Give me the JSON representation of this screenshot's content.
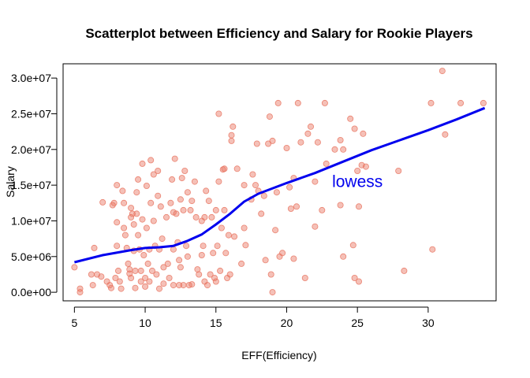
{
  "chart_data": {
    "type": "scatter",
    "title": "Scatterplot between Efficiency and Salary for Rookie Players",
    "xlabel": "EFF(Efficiency)",
    "ylabel": "Salary",
    "xlim": [
      4.2,
      34.8
    ],
    "ylim": [
      -1200000,
      32000000
    ],
    "x_ticks": [
      5,
      10,
      15,
      20,
      25,
      30
    ],
    "y_ticks": [
      0,
      5000000,
      10000000,
      15000000,
      20000000,
      25000000,
      30000000
    ],
    "y_tick_labels": [
      "0.0e+00",
      "5.0e+06",
      "1.0e+07",
      "1.5e+07",
      "2.0e+07",
      "2.5e+07",
      "3.0e+07"
    ],
    "grid": false,
    "point_color": "#e8735f",
    "line_color": "#0000ee",
    "annotation": {
      "text": "lowess",
      "x": 25,
      "y": 15500000,
      "color": "#0000ee"
    },
    "lowess": {
      "name": "lowess",
      "x": [
        5,
        7,
        9,
        10,
        11,
        12,
        13,
        14,
        15,
        16,
        17,
        18,
        20,
        22,
        24,
        26,
        28,
        30,
        32,
        34
      ],
      "y": [
        4200000,
        5200000,
        5900000,
        6200000,
        6300000,
        6500000,
        7200000,
        8100000,
        9500000,
        11000000,
        12700000,
        13800000,
        15300000,
        16700000,
        18300000,
        19900000,
        21300000,
        22700000,
        24200000,
        25800000
      ]
    },
    "points": [
      [
        5,
        3500000
      ],
      [
        5.4,
        0
      ],
      [
        5.4,
        500000
      ],
      [
        6.2,
        2500000
      ],
      [
        6.3,
        1000000
      ],
      [
        6.4,
        6200000
      ],
      [
        6.6,
        2500000
      ],
      [
        6.9,
        2200000
      ],
      [
        7,
        12600000
      ],
      [
        7.3,
        1500000
      ],
      [
        7.5,
        1000000
      ],
      [
        7.6,
        600000
      ],
      [
        7.7,
        12200000
      ],
      [
        7.8,
        12500000
      ],
      [
        7.9,
        2000000
      ],
      [
        8,
        15000000
      ],
      [
        8,
        9800000
      ],
      [
        8,
        6500000
      ],
      [
        8.1,
        3000000
      ],
      [
        8.2,
        1500000
      ],
      [
        8.3,
        500000
      ],
      [
        8.4,
        14200000
      ],
      [
        8.5,
        12500000
      ],
      [
        8.5,
        9000000
      ],
      [
        8.6,
        8000000
      ],
      [
        8.7,
        6200000
      ],
      [
        8.8,
        4000000
      ],
      [
        8.9,
        3200000
      ],
      [
        8.9,
        2600000
      ],
      [
        9,
        11800000
      ],
      [
        9,
        10500000
      ],
      [
        9,
        2000000
      ],
      [
        9.1,
        11000000
      ],
      [
        9.2,
        9500000
      ],
      [
        9.2,
        5800000
      ],
      [
        9.3,
        3000000
      ],
      [
        9.3,
        600000
      ],
      [
        9.4,
        14000000
      ],
      [
        9.4,
        11000000
      ],
      [
        9.5,
        15800000
      ],
      [
        9.5,
        8000000
      ],
      [
        9.6,
        6000000
      ],
      [
        9.7,
        3000000
      ],
      [
        9.7,
        1500000
      ],
      [
        9.8,
        18000000
      ],
      [
        9.8,
        10200000
      ],
      [
        9.9,
        5200000
      ],
      [
        10,
        2000000
      ],
      [
        10,
        800000
      ],
      [
        10.1,
        14900000
      ],
      [
        10.1,
        9000000
      ],
      [
        10.2,
        4000000
      ],
      [
        10.3,
        6000000
      ],
      [
        10.3,
        1500000
      ],
      [
        10.4,
        18500000
      ],
      [
        10.4,
        12500000
      ],
      [
        10.5,
        3000000
      ],
      [
        10.6,
        16500000
      ],
      [
        10.6,
        10000000
      ],
      [
        10.7,
        6500000
      ],
      [
        10.8,
        2500000
      ],
      [
        10.9,
        17000000
      ],
      [
        10.9,
        13500000
      ],
      [
        11,
        6000000
      ],
      [
        11,
        500000
      ],
      [
        11.1,
        12000000
      ],
      [
        11.2,
        7500000
      ],
      [
        11.3,
        3500000
      ],
      [
        11.3,
        1200000
      ],
      [
        11.5,
        10500000
      ],
      [
        11.6,
        4000000
      ],
      [
        11.7,
        2000000
      ],
      [
        11.8,
        12500000
      ],
      [
        11.9,
        15800000
      ],
      [
        12,
        11200000
      ],
      [
        12,
        6000000
      ],
      [
        12,
        1000000
      ],
      [
        12.1,
        18700000
      ],
      [
        12.2,
        11000000
      ],
      [
        12.3,
        7000000
      ],
      [
        12.4,
        4500000
      ],
      [
        12.4,
        1000000
      ],
      [
        12.5,
        13000000
      ],
      [
        12.5,
        3500000
      ],
      [
        12.6,
        16000000
      ],
      [
        12.7,
        11500000
      ],
      [
        12.7,
        1000000
      ],
      [
        12.8,
        17000000
      ],
      [
        12.9,
        6500000
      ],
      [
        13,
        14000000
      ],
      [
        13,
        5000000
      ],
      [
        13.1,
        1000000
      ],
      [
        13.2,
        11500000
      ],
      [
        13.3,
        12800000
      ],
      [
        13.3,
        1100000
      ],
      [
        13.5,
        15500000
      ],
      [
        13.6,
        10500000
      ],
      [
        13.7,
        3200000
      ],
      [
        13.8,
        2500000
      ],
      [
        14,
        10000000
      ],
      [
        14,
        5200000
      ],
      [
        14.1,
        6500000
      ],
      [
        14.2,
        10500000
      ],
      [
        14.2,
        1500000
      ],
      [
        14.3,
        14200000
      ],
      [
        14.4,
        1000000
      ],
      [
        14.5,
        12800000
      ],
      [
        14.6,
        2500000
      ],
      [
        14.7,
        10500000
      ],
      [
        14.8,
        5500000
      ],
      [
        14.9,
        2000000
      ],
      [
        15,
        1500000
      ],
      [
        15,
        11500000
      ],
      [
        15.1,
        6500000
      ],
      [
        15.2,
        25000000
      ],
      [
        15.2,
        15500000
      ],
      [
        15.3,
        3000000
      ],
      [
        15.4,
        9000000
      ],
      [
        15.5,
        17200000
      ],
      [
        15.6,
        17300000
      ],
      [
        15.6,
        11500000
      ],
      [
        15.7,
        5500000
      ],
      [
        15.8,
        2000000
      ],
      [
        15.9,
        8000000
      ],
      [
        16,
        2500000
      ],
      [
        16.1,
        22000000
      ],
      [
        16.1,
        21200000
      ],
      [
        16.2,
        23200000
      ],
      [
        16.3,
        7800000
      ],
      [
        16.5,
        17300000
      ],
      [
        16.8,
        4000000
      ],
      [
        17,
        15000000
      ],
      [
        17,
        9000000
      ],
      [
        17.1,
        6600000
      ],
      [
        17.5,
        13000000
      ],
      [
        17.6,
        16500000
      ],
      [
        17.8,
        15000000
      ],
      [
        17.9,
        20800000
      ],
      [
        18,
        14200000
      ],
      [
        18.2,
        11000000
      ],
      [
        18.4,
        13500000
      ],
      [
        18.5,
        4500000
      ],
      [
        18.7,
        20800000
      ],
      [
        18.8,
        24600000
      ],
      [
        18.9,
        2500000
      ],
      [
        19,
        0
      ],
      [
        19,
        21200000
      ],
      [
        19.2,
        8700000
      ],
      [
        19.3,
        14000000
      ],
      [
        19.4,
        26500000
      ],
      [
        19.5,
        5000000
      ],
      [
        19.7,
        5500000
      ],
      [
        20,
        20200000
      ],
      [
        20.2,
        14700000
      ],
      [
        20.3,
        11700000
      ],
      [
        20.5,
        16000000
      ],
      [
        20.5,
        4700000
      ],
      [
        20.7,
        12000000
      ],
      [
        20.8,
        26500000
      ],
      [
        21,
        21000000
      ],
      [
        21.3,
        2000000
      ],
      [
        21.5,
        22200000
      ],
      [
        21.7,
        23200000
      ],
      [
        22,
        15500000
      ],
      [
        22,
        9200000
      ],
      [
        22.2,
        21000000
      ],
      [
        22.5,
        11500000
      ],
      [
        22.7,
        26500000
      ],
      [
        22.8,
        18000000
      ],
      [
        23.4,
        20000000
      ],
      [
        23.8,
        12200000
      ],
      [
        23.8,
        21300000
      ],
      [
        24,
        5000000
      ],
      [
        24,
        20000000
      ],
      [
        24.5,
        24300000
      ],
      [
        24.7,
        6600000
      ],
      [
        24.8,
        2000000
      ],
      [
        24.8,
        22900000
      ],
      [
        25,
        17000000
      ],
      [
        25.1,
        12000000
      ],
      [
        25.1,
        1500000
      ],
      [
        25.3,
        17800000
      ],
      [
        25.4,
        22200000
      ],
      [
        25.6,
        17600000
      ],
      [
        27.9,
        17000000
      ],
      [
        28.3,
        3000000
      ],
      [
        30.2,
        26500000
      ],
      [
        30.3,
        6000000
      ],
      [
        31,
        31000000
      ],
      [
        31.2,
        22100000
      ],
      [
        32.3,
        26500000
      ],
      [
        33.9,
        26500000
      ]
    ]
  }
}
